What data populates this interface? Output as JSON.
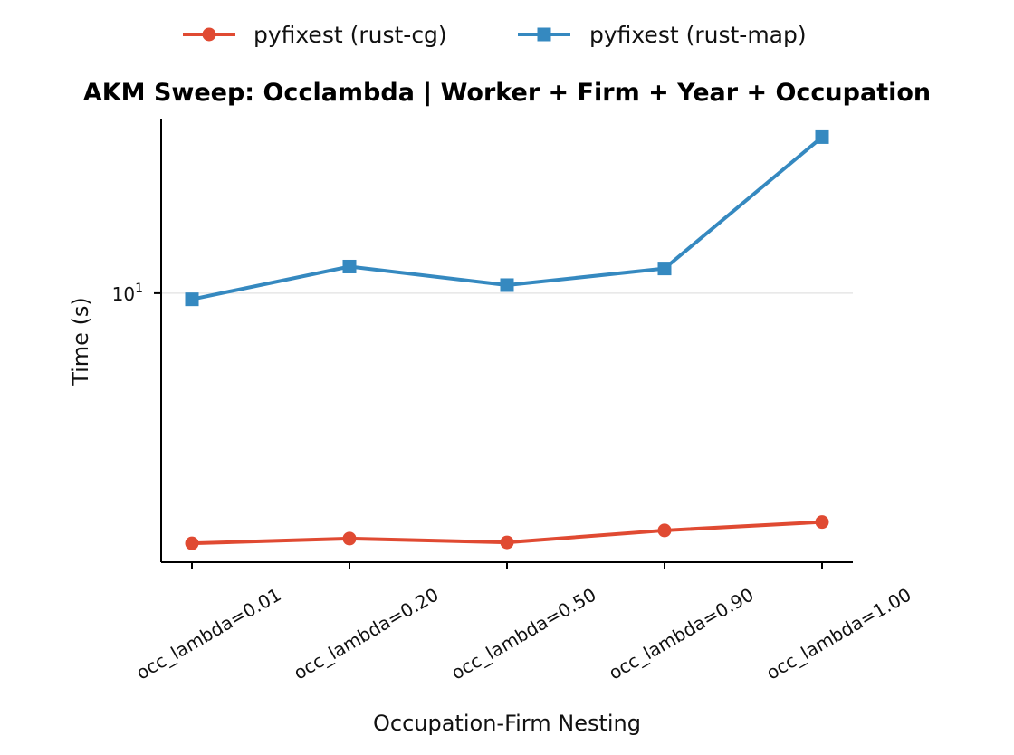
{
  "chart_data": {
    "type": "line",
    "title": "AKM Sweep: Occlambda  |  Worker + Firm + Year + Occupation",
    "xlabel": "Occupation-Firm Nesting",
    "ylabel": "Time (s)",
    "yscale": "log",
    "categories": [
      "occ_lambda=0.01",
      "occ_lambda=0.20",
      "occ_lambda=0.50",
      "occ_lambda=0.90",
      "occ_lambda=1.00"
    ],
    "series": [
      {
        "name": "pyfixest (rust-cg)",
        "color": "#e04a32",
        "marker": "circle",
        "values": [
          1.23,
          1.28,
          1.24,
          1.37,
          1.47
        ]
      },
      {
        "name": "pyfixest (rust-map)",
        "color": "#3589c0",
        "marker": "square",
        "values": [
          9.5,
          12.5,
          10.7,
          12.3,
          37.0
        ]
      }
    ],
    "ylim": [
      1.05,
      43.2
    ],
    "yticks": [
      {
        "value": 10,
        "base": "10",
        "exponent": "1"
      }
    ],
    "grid": "y-major",
    "legend": "top-center"
  }
}
